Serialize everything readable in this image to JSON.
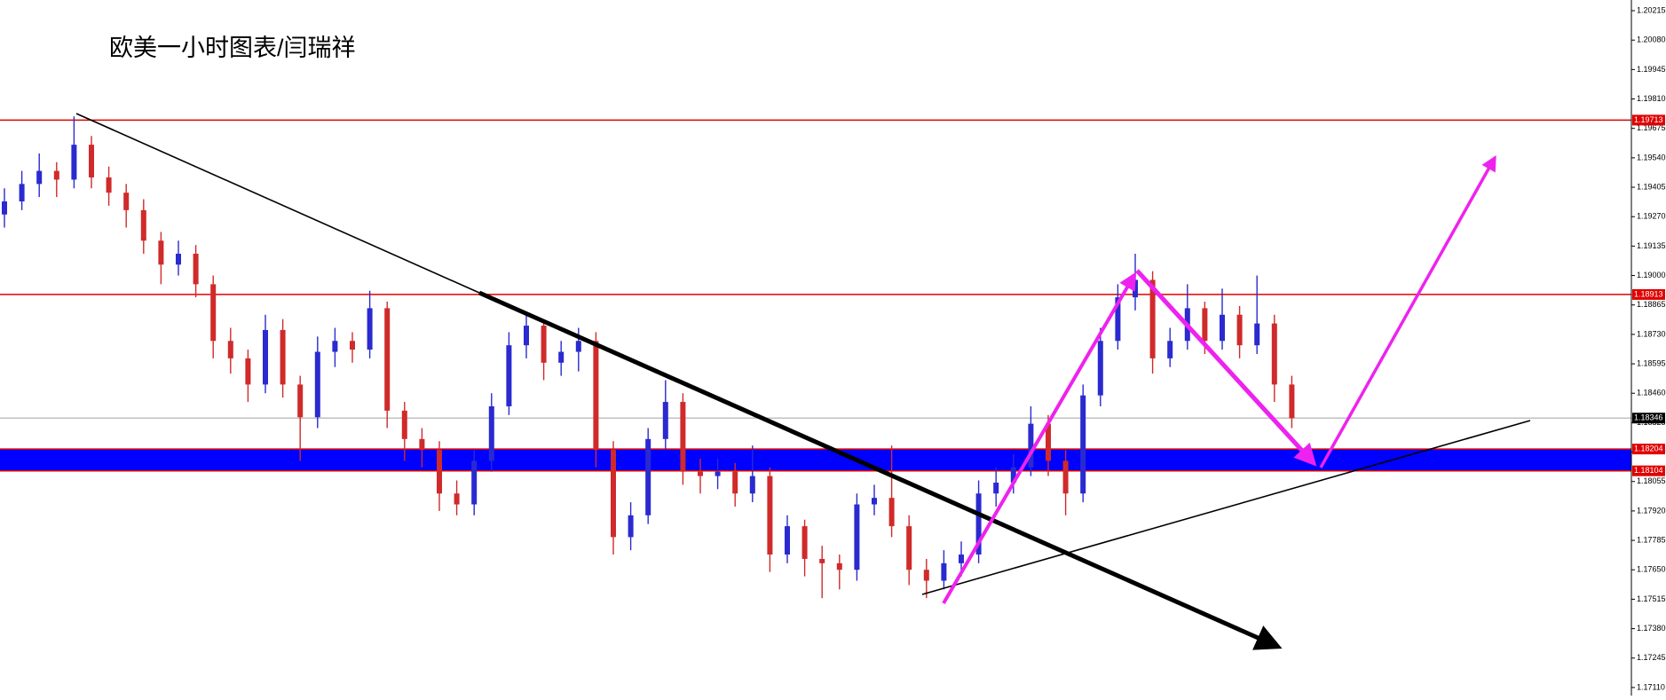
{
  "chart_data": {
    "type": "ohlc",
    "title": "欧美一小时图表/闫瑞祥",
    "ylim": [
      1.17073,
      1.20264
    ],
    "yticks": [
      1.20215,
      {
        "value": 1.2008,
        "label": "1.20080"
      },
      1.19945,
      {
        "value": 1.1981,
        "label": "1.19810"
      },
      1.19675,
      {
        "value": 1.1954,
        "label": "1.19540"
      },
      1.19405,
      {
        "value": 1.1927,
        "label": "1.19270"
      },
      1.19135,
      {
        "value": 1.19,
        "label": "1.19000"
      },
      1.18865,
      {
        "value": 1.1873,
        "label": "1.18730"
      },
      1.18595,
      {
        "value": 1.1846,
        "label": "1.18460"
      },
      1.18325,
      {
        "value": 1.1819,
        "label": "1.18190"
      },
      1.18055,
      {
        "value": 1.1792,
        "label": "1.17920"
      },
      1.17785,
      {
        "value": 1.1765,
        "label": "1.17650"
      },
      1.17515,
      {
        "value": 1.1738,
        "label": "1.17380"
      },
      1.17245,
      {
        "value": 1.1711,
        "label": "1.17110"
      }
    ],
    "up_color": "#2a2ad0",
    "down_color": "#d02a2a",
    "levels": [
      {
        "value": 1.19713,
        "color": "#e00000"
      },
      {
        "value": 1.18913,
        "color": "#e00000"
      },
      {
        "value": 1.18204,
        "color": "#e00000"
      },
      {
        "value": 1.18104,
        "color": "#e00000"
      },
      {
        "value": 1.18346,
        "color": "#c0c0c0"
      }
    ],
    "band": {
      "from": 1.18104,
      "to": 1.18204,
      "color": "#0000ff"
    },
    "bars": [
      [
        1.1928,
        1.194,
        1.1922,
        1.1934
      ],
      [
        1.1934,
        1.1948,
        1.193,
        1.1942
      ],
      [
        1.1942,
        1.1956,
        1.1936,
        1.1948
      ],
      [
        1.1948,
        1.1952,
        1.1936,
        1.1944
      ],
      [
        1.1944,
        1.1973,
        1.194,
        1.196
      ],
      [
        1.196,
        1.1964,
        1.194,
        1.1945
      ],
      [
        1.1945,
        1.195,
        1.1932,
        1.1938
      ],
      [
        1.1938,
        1.1942,
        1.1922,
        1.193
      ],
      [
        1.193,
        1.1935,
        1.191,
        1.1916
      ],
      [
        1.1916,
        1.192,
        1.1896,
        1.1905
      ],
      [
        1.1905,
        1.1916,
        1.19,
        1.191
      ],
      [
        1.191,
        1.1914,
        1.189,
        1.1896
      ],
      [
        1.1896,
        1.19,
        1.1862,
        1.187
      ],
      [
        1.187,
        1.1876,
        1.1855,
        1.1862
      ],
      [
        1.1862,
        1.1866,
        1.1842,
        1.185
      ],
      [
        1.185,
        1.1882,
        1.1846,
        1.1875
      ],
      [
        1.1875,
        1.188,
        1.1844,
        1.185
      ],
      [
        1.185,
        1.1854,
        1.1815,
        1.1835
      ],
      [
        1.1835,
        1.1872,
        1.183,
        1.1865
      ],
      [
        1.1865,
        1.1876,
        1.1858,
        1.187
      ],
      [
        1.187,
        1.1874,
        1.186,
        1.1866
      ],
      [
        1.1866,
        1.1893,
        1.1862,
        1.1885
      ],
      [
        1.1885,
        1.1888,
        1.183,
        1.1838
      ],
      [
        1.1838,
        1.1842,
        1.1815,
        1.1825
      ],
      [
        1.1825,
        1.183,
        1.1812,
        1.182
      ],
      [
        1.182,
        1.1824,
        1.1792,
        1.18
      ],
      [
        1.18,
        1.1806,
        1.179,
        1.1795
      ],
      [
        1.1795,
        1.182,
        1.179,
        1.1815
      ],
      [
        1.1815,
        1.1846,
        1.181,
        1.184
      ],
      [
        1.184,
        1.1874,
        1.1836,
        1.1868
      ],
      [
        1.1868,
        1.1882,
        1.1862,
        1.1877
      ],
      [
        1.1877,
        1.188,
        1.1852,
        1.186
      ],
      [
        1.186,
        1.187,
        1.1854,
        1.1865
      ],
      [
        1.1865,
        1.1876,
        1.1856,
        1.187
      ],
      [
        1.187,
        1.1874,
        1.1812,
        1.182
      ],
      [
        1.182,
        1.1824,
        1.1772,
        1.178
      ],
      [
        1.178,
        1.1796,
        1.1774,
        1.179
      ],
      [
        1.179,
        1.183,
        1.1786,
        1.1825
      ],
      [
        1.1825,
        1.1852,
        1.182,
        1.1842
      ],
      [
        1.1842,
        1.1846,
        1.1804,
        1.181
      ],
      [
        1.181,
        1.1816,
        1.18,
        1.1808
      ],
      [
        1.1808,
        1.1816,
        1.1802,
        1.181
      ],
      [
        1.181,
        1.1814,
        1.1794,
        1.18
      ],
      [
        1.18,
        1.1822,
        1.1796,
        1.1808
      ],
      [
        1.1808,
        1.1812,
        1.1764,
        1.1772
      ],
      [
        1.1772,
        1.179,
        1.1768,
        1.1785
      ],
      [
        1.1785,
        1.1788,
        1.1762,
        1.177
      ],
      [
        1.177,
        1.1776,
        1.1752,
        1.1768
      ],
      [
        1.1768,
        1.1772,
        1.1756,
        1.1765
      ],
      [
        1.1765,
        1.18,
        1.176,
        1.1795
      ],
      [
        1.1795,
        1.1804,
        1.179,
        1.1798
      ],
      [
        1.1798,
        1.1822,
        1.178,
        1.1785
      ],
      [
        1.1785,
        1.179,
        1.1758,
        1.1765
      ],
      [
        1.1765,
        1.177,
        1.1752,
        1.176
      ],
      [
        1.176,
        1.1774,
        1.1756,
        1.1768
      ],
      [
        1.1768,
        1.1778,
        1.1762,
        1.1772
      ],
      [
        1.1772,
        1.1806,
        1.1768,
        1.18
      ],
      [
        1.18,
        1.1812,
        1.1794,
        1.1805
      ],
      [
        1.1805,
        1.1818,
        1.18,
        1.1812
      ],
      [
        1.1812,
        1.184,
        1.1808,
        1.1832
      ],
      [
        1.1832,
        1.1836,
        1.1808,
        1.1815
      ],
      [
        1.1815,
        1.182,
        1.179,
        1.18
      ],
      [
        1.18,
        1.185,
        1.1796,
        1.1845
      ],
      [
        1.1845,
        1.1876,
        1.184,
        1.187
      ],
      [
        1.187,
        1.1896,
        1.1866,
        1.189
      ],
      [
        1.189,
        1.191,
        1.1884,
        1.1898
      ],
      [
        1.1898,
        1.1902,
        1.1855,
        1.1862
      ],
      [
        1.1862,
        1.1876,
        1.1858,
        1.187
      ],
      [
        1.187,
        1.1896,
        1.1866,
        1.1885
      ],
      [
        1.1885,
        1.1888,
        1.1864,
        1.187
      ],
      [
        1.187,
        1.1894,
        1.1866,
        1.1882
      ],
      [
        1.1882,
        1.1886,
        1.1862,
        1.1868
      ],
      [
        1.1868,
        1.19,
        1.1864,
        1.1878
      ],
      [
        1.1878,
        1.1882,
        1.1842,
        1.185
      ],
      [
        1.185,
        1.1854,
        1.183,
        1.18346
      ]
    ]
  }
}
